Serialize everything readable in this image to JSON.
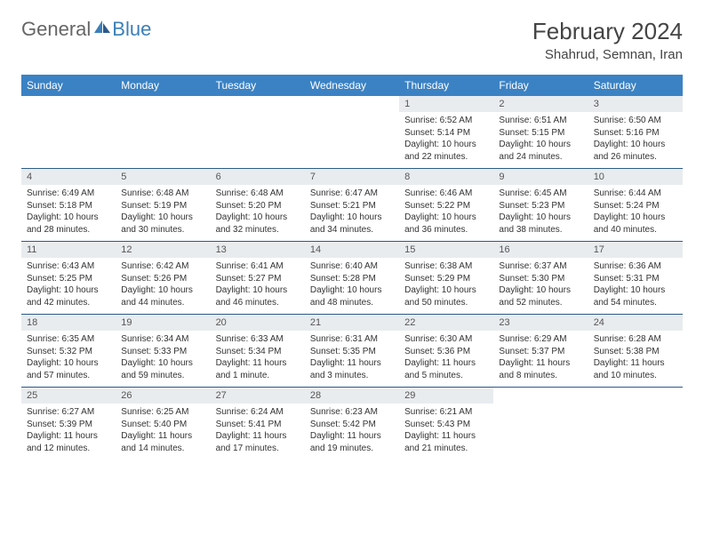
{
  "logo": {
    "text1": "General",
    "text2": "Blue"
  },
  "title": "February 2024",
  "location": "Shahrud, Semnan, Iran",
  "colors": {
    "header_bg": "#3b82c4",
    "header_text": "#ffffff",
    "daynum_bg": "#e9ecef",
    "border": "#2c5a8a",
    "logo_blue": "#3b7fb8",
    "body_text": "#333333"
  },
  "day_names": [
    "Sunday",
    "Monday",
    "Tuesday",
    "Wednesday",
    "Thursday",
    "Friday",
    "Saturday"
  ],
  "weeks": [
    [
      null,
      null,
      null,
      null,
      {
        "n": "1",
        "sr": "Sunrise: 6:52 AM",
        "ss": "Sunset: 5:14 PM",
        "dl": "Daylight: 10 hours and 22 minutes."
      },
      {
        "n": "2",
        "sr": "Sunrise: 6:51 AM",
        "ss": "Sunset: 5:15 PM",
        "dl": "Daylight: 10 hours and 24 minutes."
      },
      {
        "n": "3",
        "sr": "Sunrise: 6:50 AM",
        "ss": "Sunset: 5:16 PM",
        "dl": "Daylight: 10 hours and 26 minutes."
      }
    ],
    [
      {
        "n": "4",
        "sr": "Sunrise: 6:49 AM",
        "ss": "Sunset: 5:18 PM",
        "dl": "Daylight: 10 hours and 28 minutes."
      },
      {
        "n": "5",
        "sr": "Sunrise: 6:48 AM",
        "ss": "Sunset: 5:19 PM",
        "dl": "Daylight: 10 hours and 30 minutes."
      },
      {
        "n": "6",
        "sr": "Sunrise: 6:48 AM",
        "ss": "Sunset: 5:20 PM",
        "dl": "Daylight: 10 hours and 32 minutes."
      },
      {
        "n": "7",
        "sr": "Sunrise: 6:47 AM",
        "ss": "Sunset: 5:21 PM",
        "dl": "Daylight: 10 hours and 34 minutes."
      },
      {
        "n": "8",
        "sr": "Sunrise: 6:46 AM",
        "ss": "Sunset: 5:22 PM",
        "dl": "Daylight: 10 hours and 36 minutes."
      },
      {
        "n": "9",
        "sr": "Sunrise: 6:45 AM",
        "ss": "Sunset: 5:23 PM",
        "dl": "Daylight: 10 hours and 38 minutes."
      },
      {
        "n": "10",
        "sr": "Sunrise: 6:44 AM",
        "ss": "Sunset: 5:24 PM",
        "dl": "Daylight: 10 hours and 40 minutes."
      }
    ],
    [
      {
        "n": "11",
        "sr": "Sunrise: 6:43 AM",
        "ss": "Sunset: 5:25 PM",
        "dl": "Daylight: 10 hours and 42 minutes."
      },
      {
        "n": "12",
        "sr": "Sunrise: 6:42 AM",
        "ss": "Sunset: 5:26 PM",
        "dl": "Daylight: 10 hours and 44 minutes."
      },
      {
        "n": "13",
        "sr": "Sunrise: 6:41 AM",
        "ss": "Sunset: 5:27 PM",
        "dl": "Daylight: 10 hours and 46 minutes."
      },
      {
        "n": "14",
        "sr": "Sunrise: 6:40 AM",
        "ss": "Sunset: 5:28 PM",
        "dl": "Daylight: 10 hours and 48 minutes."
      },
      {
        "n": "15",
        "sr": "Sunrise: 6:38 AM",
        "ss": "Sunset: 5:29 PM",
        "dl": "Daylight: 10 hours and 50 minutes."
      },
      {
        "n": "16",
        "sr": "Sunrise: 6:37 AM",
        "ss": "Sunset: 5:30 PM",
        "dl": "Daylight: 10 hours and 52 minutes."
      },
      {
        "n": "17",
        "sr": "Sunrise: 6:36 AM",
        "ss": "Sunset: 5:31 PM",
        "dl": "Daylight: 10 hours and 54 minutes."
      }
    ],
    [
      {
        "n": "18",
        "sr": "Sunrise: 6:35 AM",
        "ss": "Sunset: 5:32 PM",
        "dl": "Daylight: 10 hours and 57 minutes."
      },
      {
        "n": "19",
        "sr": "Sunrise: 6:34 AM",
        "ss": "Sunset: 5:33 PM",
        "dl": "Daylight: 10 hours and 59 minutes."
      },
      {
        "n": "20",
        "sr": "Sunrise: 6:33 AM",
        "ss": "Sunset: 5:34 PM",
        "dl": "Daylight: 11 hours and 1 minute."
      },
      {
        "n": "21",
        "sr": "Sunrise: 6:31 AM",
        "ss": "Sunset: 5:35 PM",
        "dl": "Daylight: 11 hours and 3 minutes."
      },
      {
        "n": "22",
        "sr": "Sunrise: 6:30 AM",
        "ss": "Sunset: 5:36 PM",
        "dl": "Daylight: 11 hours and 5 minutes."
      },
      {
        "n": "23",
        "sr": "Sunrise: 6:29 AM",
        "ss": "Sunset: 5:37 PM",
        "dl": "Daylight: 11 hours and 8 minutes."
      },
      {
        "n": "24",
        "sr": "Sunrise: 6:28 AM",
        "ss": "Sunset: 5:38 PM",
        "dl": "Daylight: 11 hours and 10 minutes."
      }
    ],
    [
      {
        "n": "25",
        "sr": "Sunrise: 6:27 AM",
        "ss": "Sunset: 5:39 PM",
        "dl": "Daylight: 11 hours and 12 minutes."
      },
      {
        "n": "26",
        "sr": "Sunrise: 6:25 AM",
        "ss": "Sunset: 5:40 PM",
        "dl": "Daylight: 11 hours and 14 minutes."
      },
      {
        "n": "27",
        "sr": "Sunrise: 6:24 AM",
        "ss": "Sunset: 5:41 PM",
        "dl": "Daylight: 11 hours and 17 minutes."
      },
      {
        "n": "28",
        "sr": "Sunrise: 6:23 AM",
        "ss": "Sunset: 5:42 PM",
        "dl": "Daylight: 11 hours and 19 minutes."
      },
      {
        "n": "29",
        "sr": "Sunrise: 6:21 AM",
        "ss": "Sunset: 5:43 PM",
        "dl": "Daylight: 11 hours and 21 minutes."
      },
      null,
      null
    ]
  ]
}
